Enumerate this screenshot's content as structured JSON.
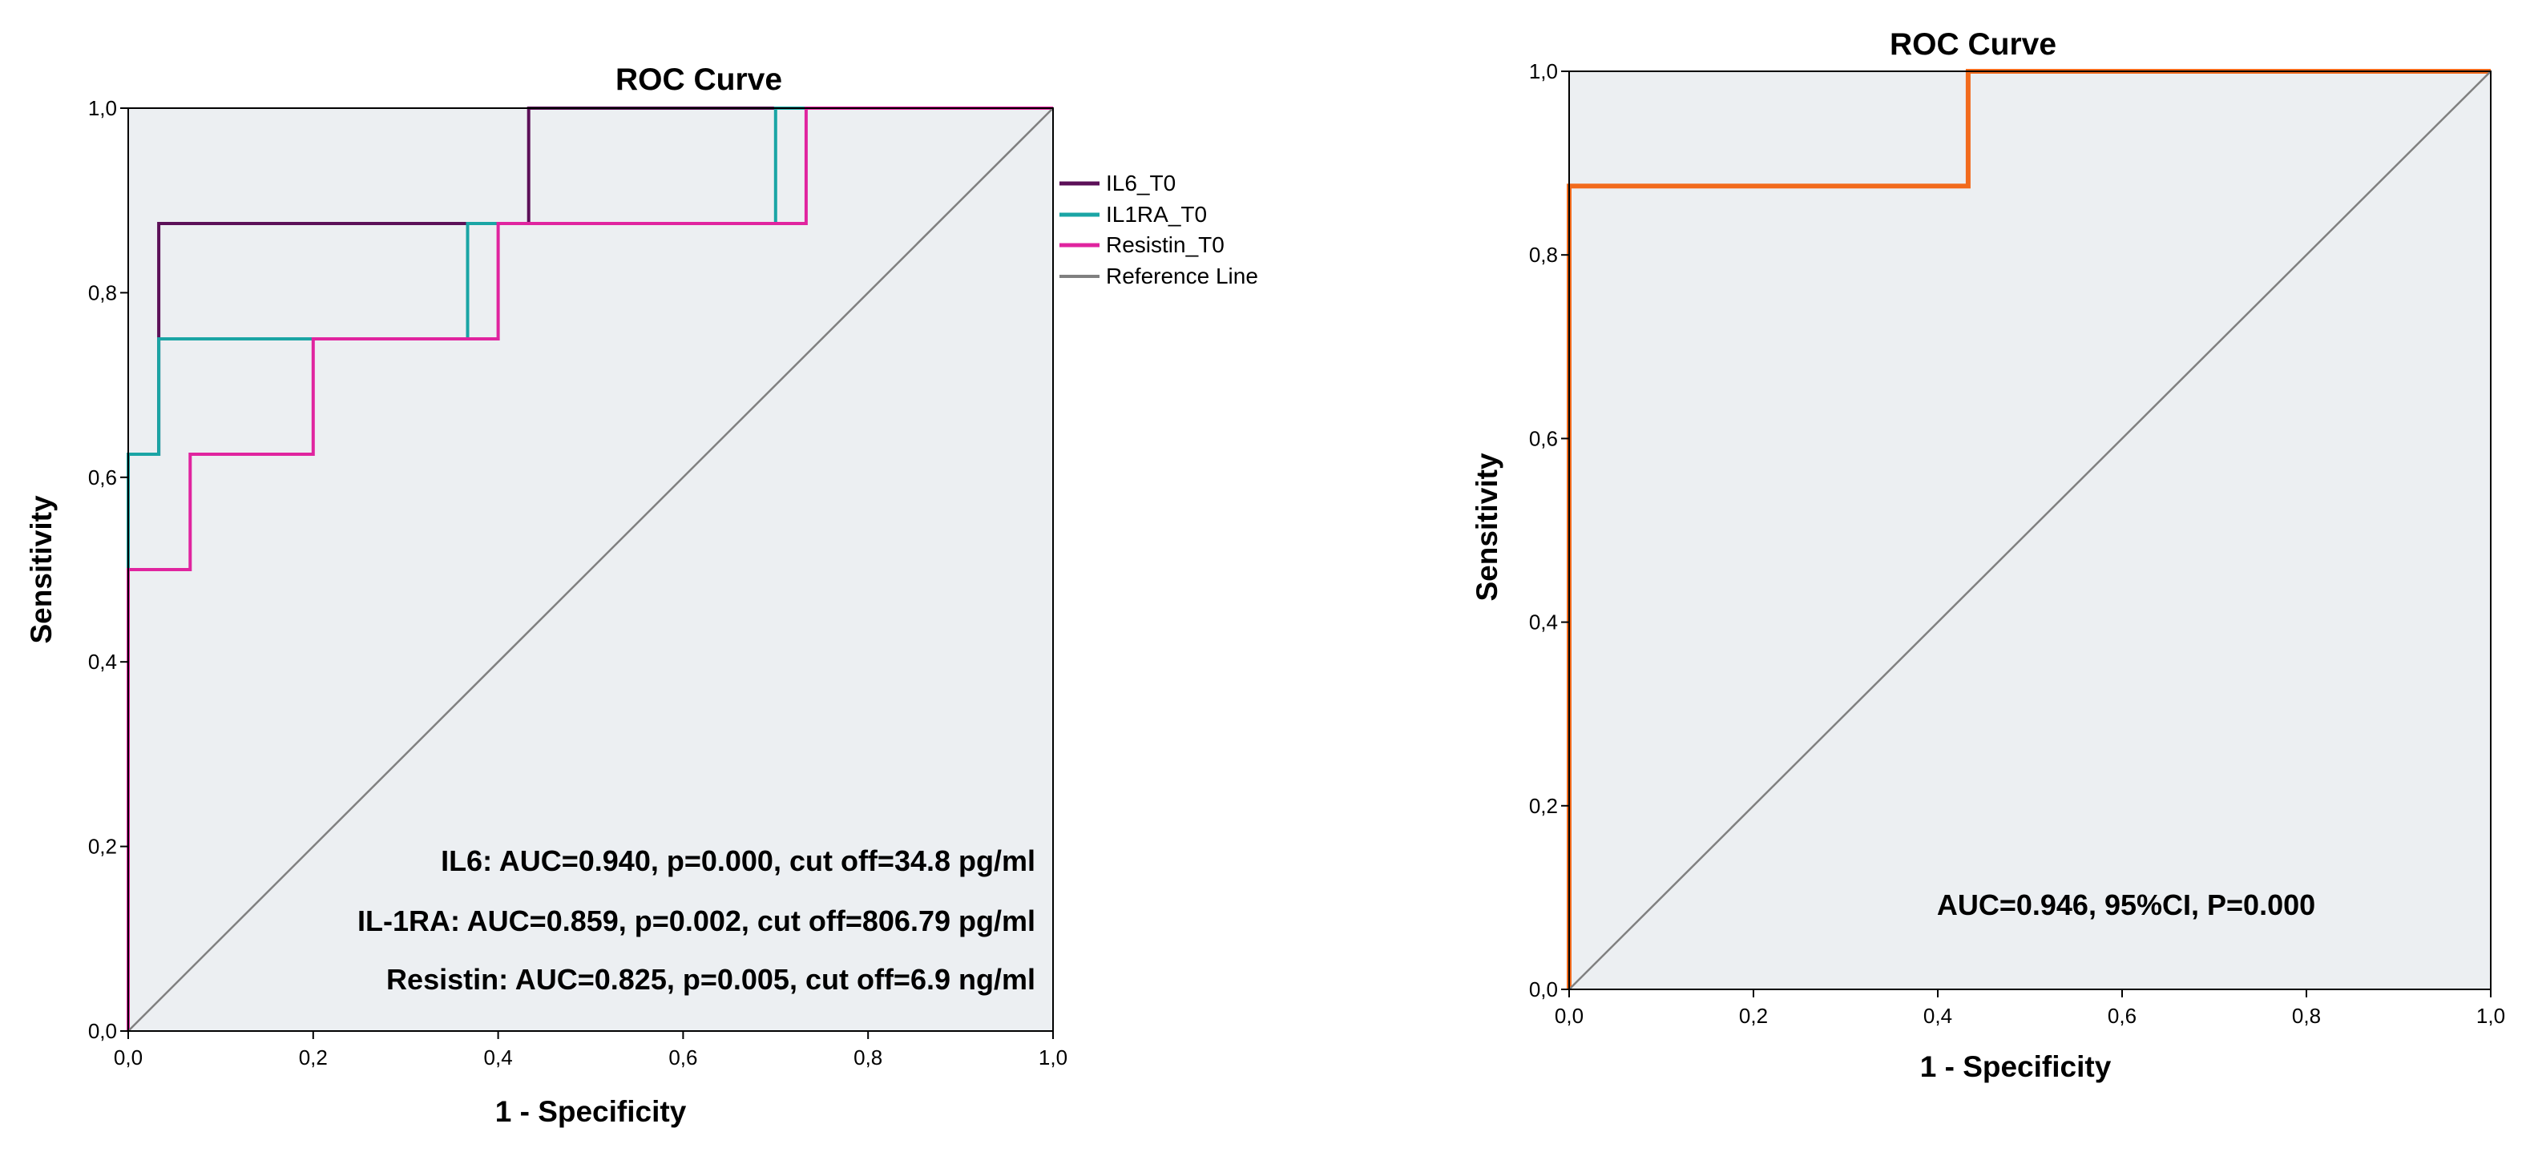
{
  "chart_data": [
    {
      "type": "line",
      "title": "ROC Curve",
      "xlabel": "1 - Specificity",
      "ylabel": "Sensitivity",
      "xlim": [
        0,
        1
      ],
      "ylim": [
        0,
        1
      ],
      "xticks": [
        "0,0",
        "0,2",
        "0,4",
        "0,6",
        "0,8",
        "1,0"
      ],
      "yticks": [
        "0,0",
        "0,2",
        "0,4",
        "0,6",
        "0,8",
        "1,0"
      ],
      "grid": false,
      "legend_position": "right",
      "series": [
        {
          "name": "IL6_T0",
          "color": "#5c1058",
          "points": [
            [
              0,
              0
            ],
            [
              0,
              0.625
            ],
            [
              0.033,
              0.625
            ],
            [
              0.033,
              0.875
            ],
            [
              0.433,
              0.875
            ],
            [
              0.433,
              1.0
            ],
            [
              1.0,
              1.0
            ]
          ]
        },
        {
          "name": "IL1RA_T0",
          "color": "#1aa5a5",
          "points": [
            [
              0,
              0
            ],
            [
              0,
              0.625
            ],
            [
              0.033,
              0.625
            ],
            [
              0.033,
              0.75
            ],
            [
              0.367,
              0.75
            ],
            [
              0.367,
              0.875
            ],
            [
              0.7,
              0.875
            ],
            [
              0.7,
              1.0
            ],
            [
              1.0,
              1.0
            ]
          ]
        },
        {
          "name": "Resistin_T0",
          "color": "#e0249f",
          "points": [
            [
              0,
              0
            ],
            [
              0,
              0.5
            ],
            [
              0.067,
              0.5
            ],
            [
              0.067,
              0.625
            ],
            [
              0.2,
              0.625
            ],
            [
              0.2,
              0.75
            ],
            [
              0.4,
              0.75
            ],
            [
              0.4,
              0.875
            ],
            [
              0.733,
              0.875
            ],
            [
              0.733,
              1.0
            ],
            [
              1.0,
              1.0
            ]
          ]
        },
        {
          "name": "Reference Line",
          "color": "#808080",
          "points": [
            [
              0,
              0
            ],
            [
              1,
              1
            ]
          ]
        }
      ],
      "annotations": [
        "IL6: AUC=0.940, p=0.000, cut off=34.8 pg/ml",
        "IL-1RA: AUC=0.859, p=0.002, cut off=806.79 pg/ml",
        "Resistin: AUC=0.825, p=0.005, cut off=6.9 ng/ml"
      ]
    },
    {
      "type": "line",
      "title": "ROC Curve",
      "xlabel": "1 - Specificity",
      "ylabel": "Sensitivity",
      "xlim": [
        0,
        1
      ],
      "ylim": [
        0,
        1
      ],
      "xticks": [
        "0,0",
        "0,2",
        "0,4",
        "0,6",
        "0,8",
        "1,0"
      ],
      "yticks": [
        "0,0",
        "0,2",
        "0,4",
        "0,6",
        "0,8",
        "1,0"
      ],
      "grid": false,
      "series": [
        {
          "color": "#f26b1d",
          "points": [
            [
              0,
              0
            ],
            [
              0,
              0.875
            ],
            [
              0.433,
              0.875
            ],
            [
              0.433,
              1.0
            ],
            [
              1.0,
              1.0
            ]
          ]
        },
        {
          "color": "#808080",
          "points": [
            [
              0,
              0
            ],
            [
              1,
              1
            ]
          ]
        }
      ],
      "annotations": [
        "AUC=0.946, 95%CI, P=0.000"
      ]
    }
  ],
  "plot_background": "#eceff2"
}
